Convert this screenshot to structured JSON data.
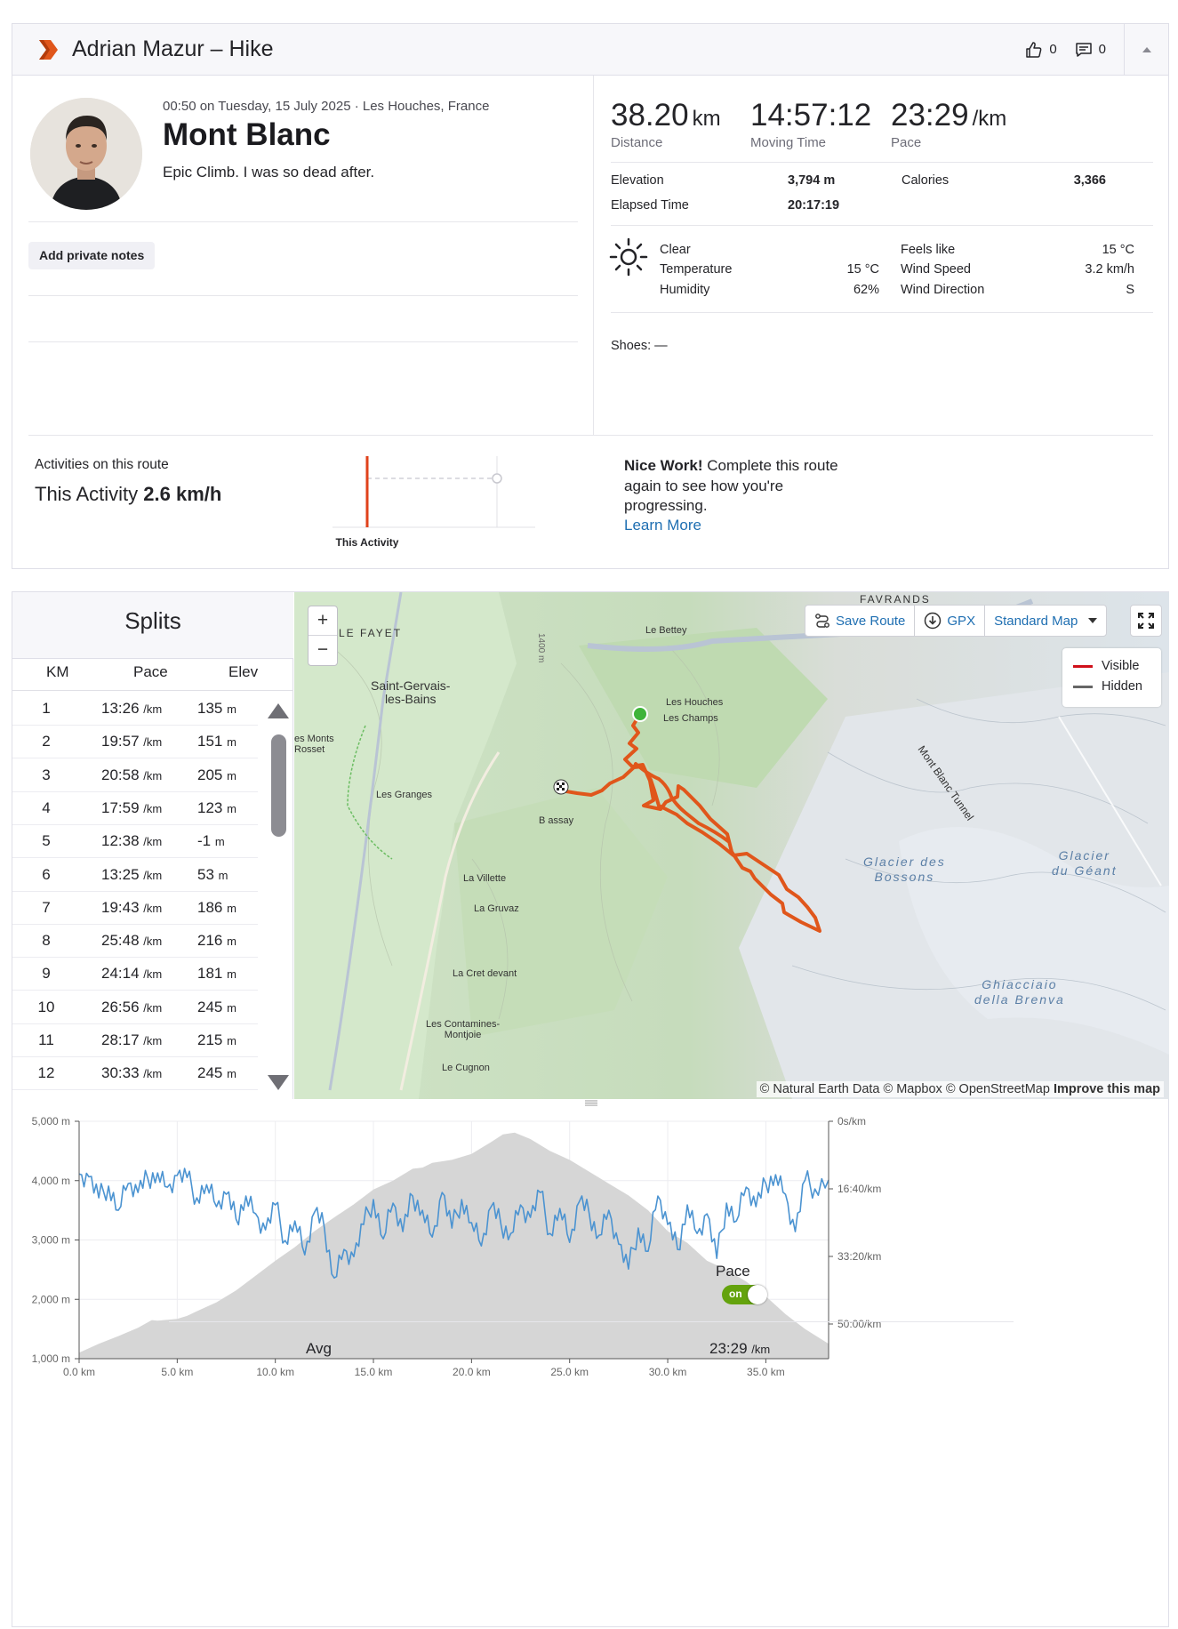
{
  "header": {
    "title": "Adrian Mazur – Hike",
    "kudos_count": "0",
    "comments_count": "0"
  },
  "activity": {
    "meta": "00:50 on Tuesday, 15 July 2025 · Les Houches, France",
    "name": "Mont Blanc",
    "description": "Epic Climb. I was so dead after.",
    "notes_button": "Add private notes"
  },
  "stats": {
    "distance": {
      "value": "38.20",
      "unit": "km",
      "label": "Distance"
    },
    "moving_time": {
      "value": "14:57:12",
      "label": "Moving Time"
    },
    "pace": {
      "value": "23:29",
      "unit": "/km",
      "label": "Pace"
    },
    "elevation_label": "Elevation",
    "elevation_value": "3,794 m",
    "calories_label": "Calories",
    "calories_value": "3,366",
    "elapsed_label": "Elapsed Time",
    "elapsed_value": "20:17:19"
  },
  "weather": {
    "condition": "Clear",
    "temperature_label": "Temperature",
    "temperature_value": "15 °C",
    "humidity_label": "Humidity",
    "humidity_value": "62%",
    "feels_like_label": "Feels like",
    "feels_like_value": "15 °C",
    "wind_speed_label": "Wind Speed",
    "wind_speed_value": "3.2 km/h",
    "wind_direction_label": "Wind Direction",
    "wind_direction_value": "S"
  },
  "shoes": "Shoes: —",
  "route": {
    "label": "Activities on this route",
    "value_prefix": "This Activity",
    "value": "2.6 km/h",
    "chart_caption": "This Activity",
    "nice_bold": "Nice Work!",
    "nice_text": " Complete this route again to see how you're progressing.",
    "learn_more": "Learn More"
  },
  "splits": {
    "title": "Splits",
    "headers": {
      "km": "KM",
      "pace": "Pace",
      "elev": "Elev"
    },
    "pace_unit": "/km",
    "elev_unit": "m",
    "rows": [
      {
        "km": "1",
        "pace": "13:26",
        "elev": "135"
      },
      {
        "km": "2",
        "pace": "19:57",
        "elev": "151"
      },
      {
        "km": "3",
        "pace": "20:58",
        "elev": "205"
      },
      {
        "km": "4",
        "pace": "17:59",
        "elev": "123"
      },
      {
        "km": "5",
        "pace": "12:38",
        "elev": "-1"
      },
      {
        "km": "6",
        "pace": "13:25",
        "elev": "53"
      },
      {
        "km": "7",
        "pace": "19:43",
        "elev": "186"
      },
      {
        "km": "8",
        "pace": "25:48",
        "elev": "216"
      },
      {
        "km": "9",
        "pace": "24:14",
        "elev": "181"
      },
      {
        "km": "10",
        "pace": "26:56",
        "elev": "245"
      },
      {
        "km": "11",
        "pace": "28:17",
        "elev": "215"
      },
      {
        "km": "12",
        "pace": "30:33",
        "elev": "245"
      }
    ]
  },
  "map": {
    "save_route": "Save Route",
    "gpx": "GPX",
    "map_style": "Standard Map",
    "legend_visible": "Visible",
    "legend_hidden": "Hidden",
    "attribution": "© Natural Earth Data © Mapbox © OpenStreetMap",
    "improve": "Improve this map",
    "route_color": "#e0561b",
    "start_color": "#3fb43a",
    "places": {
      "le_fayet": "LE FAYET",
      "favrands": "FAVRANDS",
      "le_bettey": "Le Bettey",
      "saint_gervais_1": "Saint-Gervais-",
      "saint_gervais_2": "les-Bains",
      "les_monts_1": "es Monts",
      "les_monts_2": "Rosset",
      "les_houches": "Les Houches",
      "les_champs": "Les Champs",
      "les_granges": "Les Granges",
      "bionnassay": "B assay",
      "la_villette": "La Villette",
      "la_gruvaz": "La Gruvaz",
      "la_cret": "La Cret devant",
      "contamines_1": "Les Contamines-",
      "contamines_2": "Montjoie",
      "le_cugnon": "Le Cugnon",
      "tunnel": "Mont Blanc Tunnel",
      "contour": "1400 m",
      "glacier_bossons_1": "Glacier des",
      "glacier_bossons_2": "Bossons",
      "glacier_geant_1": "Glacier",
      "glacier_geant_2": "du Géant",
      "brenva_1": "Ghiacciaio",
      "brenva_2": "della Brenva"
    }
  },
  "chart_data": {
    "type": "area",
    "x_unit": "km",
    "xlim": [
      0,
      38.2
    ],
    "x_ticks": [
      "0.0 km",
      "5.0 km",
      "10.0 km",
      "15.0 km",
      "20.0 km",
      "25.0 km",
      "30.0 km",
      "35.0 km"
    ],
    "y_left_ticks": [
      "5,000 m",
      "4,000 m",
      "3,000 m",
      "2,000 m",
      "1,000 m"
    ],
    "y_left_lim": [
      1000,
      5000
    ],
    "y_right_ticks": [
      "0s/km",
      "16:40/km",
      "33:20/km",
      "50:00/km"
    ],
    "series": [
      {
        "name": "Elevation",
        "color": "#d6d6d6",
        "x": [
          0,
          1,
          2,
          3,
          3.7,
          4,
          5,
          5.5,
          6,
          7,
          8,
          9,
          10,
          11,
          12,
          13,
          14,
          15,
          16,
          17,
          17.5,
          18,
          19,
          20,
          20.5,
          21,
          21.6,
          22.2,
          23,
          24,
          25,
          26,
          27,
          28,
          29,
          30,
          31,
          32,
          33,
          34,
          35,
          36,
          37,
          38.2
        ],
        "values": [
          1100,
          1250,
          1380,
          1520,
          1650,
          1640,
          1670,
          1720,
          1800,
          1950,
          2150,
          2400,
          2650,
          2880,
          3150,
          3380,
          3600,
          3850,
          4000,
          4200,
          4220,
          4300,
          4350,
          4450,
          4550,
          4650,
          4780,
          4810,
          4700,
          4500,
          4350,
          4150,
          3950,
          3750,
          3500,
          3150,
          2950,
          2650,
          2500,
          2300,
          2050,
          1750,
          1500,
          1250
        ]
      },
      {
        "name": "Pace",
        "color": "#4b93d1",
        "x": [
          0,
          0.5,
          1,
          1.5,
          2,
          2.5,
          3,
          3.5,
          4,
          4.5,
          5,
          5.5,
          6,
          6.5,
          7,
          7.5,
          8,
          8.5,
          9,
          9.5,
          10,
          10.5,
          11,
          11.5,
          12,
          12.5,
          13,
          13.5,
          14,
          14.5,
          15,
          15.5,
          16,
          16.5,
          17,
          17.5,
          18,
          18.5,
          19,
          19.5,
          20,
          20.5,
          21,
          21.5,
          22,
          22.5,
          23,
          23.5,
          24,
          24.5,
          25,
          25.5,
          26,
          26.5,
          27,
          27.5,
          28,
          28.5,
          29,
          29.5,
          30,
          30.5,
          31,
          31.5,
          32,
          32.5,
          33,
          33.5,
          34,
          34.5,
          35,
          35.5,
          36,
          36.5,
          37,
          37.5,
          38.2
        ],
        "values": [
          14.8,
          15.6,
          21.5,
          18.2,
          25.0,
          17.5,
          20.0,
          16.0,
          14.5,
          18.5,
          15.2,
          15.8,
          21.5,
          17.8,
          24.0,
          20.5,
          27.5,
          21.0,
          26.0,
          30.5,
          23.5,
          33.5,
          28.0,
          37.5,
          25.5,
          30.0,
          44.0,
          36.0,
          38.0,
          29.0,
          22.0,
          33.0,
          23.0,
          31.0,
          21.0,
          25.0,
          32.5,
          20.0,
          30.0,
          22.0,
          28.5,
          35.0,
          24.0,
          29.0,
          31.5,
          23.5,
          27.0,
          20.0,
          31.5,
          24.5,
          34.0,
          22.5,
          26.0,
          32.0,
          25.0,
          34.5,
          41.5,
          30.0,
          36.5,
          21.0,
          29.0,
          36.0,
          23.5,
          31.5,
          26.0,
          38.5,
          23.0,
          28.0,
          18.5,
          24.0,
          17.5,
          15.0,
          20.5,
          31.0,
          16.5,
          19.0,
          16.5
        ]
      }
    ],
    "avg_label": "Avg",
    "avg_value": "23:29",
    "avg_unit": "/km",
    "toggle_label": "Pace",
    "toggle_state": "on",
    "grid": true
  }
}
